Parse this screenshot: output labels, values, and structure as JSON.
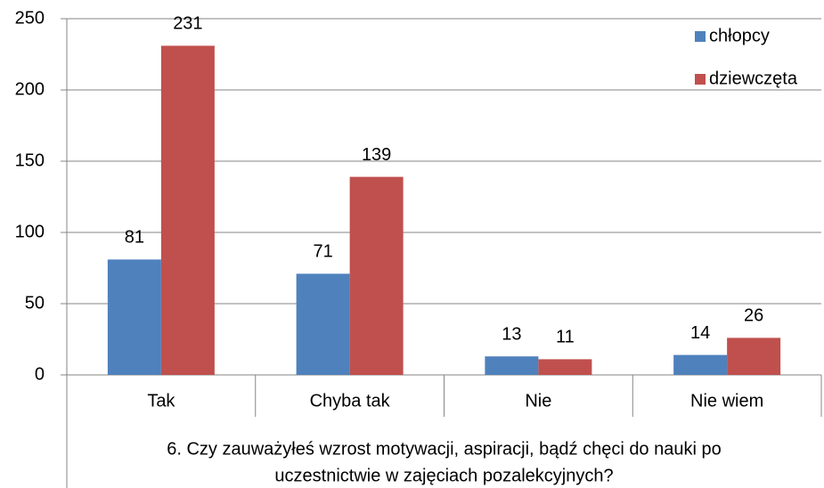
{
  "chart_data": {
    "type": "bar",
    "categories": [
      "Tak",
      "Chyba tak",
      "Nie",
      "Nie wiem"
    ],
    "series": [
      {
        "name": "chłopcy",
        "color": "#4f81bd",
        "values": [
          81,
          71,
          13,
          14
        ]
      },
      {
        "name": "dziewczęta",
        "color": "#c0504d",
        "values": [
          231,
          139,
          11,
          26
        ]
      }
    ],
    "xlabel": [
      "6. Czy zauważyłeś wzrost motywacji, aspiracji, bądź chęci do nauki po",
      "uczestnictwie w zajęciach pozalekcyjnych?"
    ],
    "ylim": [
      0,
      250
    ],
    "yticks": [
      0,
      50,
      100,
      150,
      200,
      250
    ],
    "grid": true,
    "legend": "upper right"
  }
}
